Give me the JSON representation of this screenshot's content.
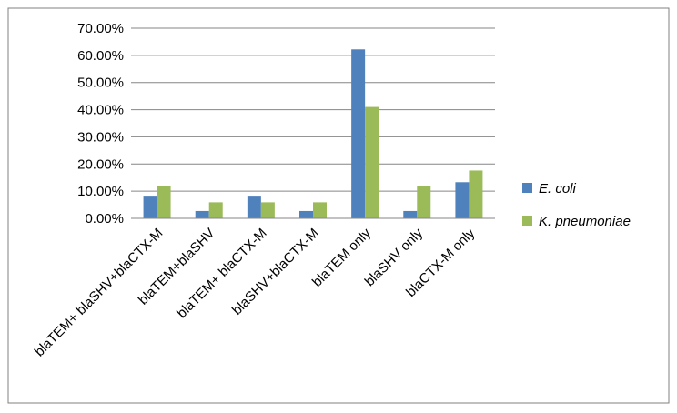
{
  "chart_data": {
    "type": "bar",
    "categories": [
      "blaTEM+ blaSHV+blaCTX-M",
      "blaTEM+blaSHV",
      "blaTEM+ blaCTX-M",
      "blaSHV+blaCTX-M",
      "blaTEM only",
      "blaSHV only",
      "blaCTX-M only"
    ],
    "series": [
      {
        "name": "E. coli",
        "values": [
          8.0,
          2.7,
          8.0,
          2.7,
          62.2,
          2.7,
          13.3
        ],
        "color": "#4F81BD"
      },
      {
        "name": "K. pneumoniae",
        "values": [
          11.8,
          5.9,
          5.9,
          5.9,
          41.0,
          11.8,
          17.6
        ],
        "color": "#9BBB59"
      }
    ],
    "yticks": [
      "0.00%",
      "10.00%",
      "20.00%",
      "30.00%",
      "40.00%",
      "50.00%",
      "60.00%",
      "70.00%"
    ],
    "ylim": [
      0,
      70
    ],
    "grid": true,
    "legend_position": "right"
  }
}
